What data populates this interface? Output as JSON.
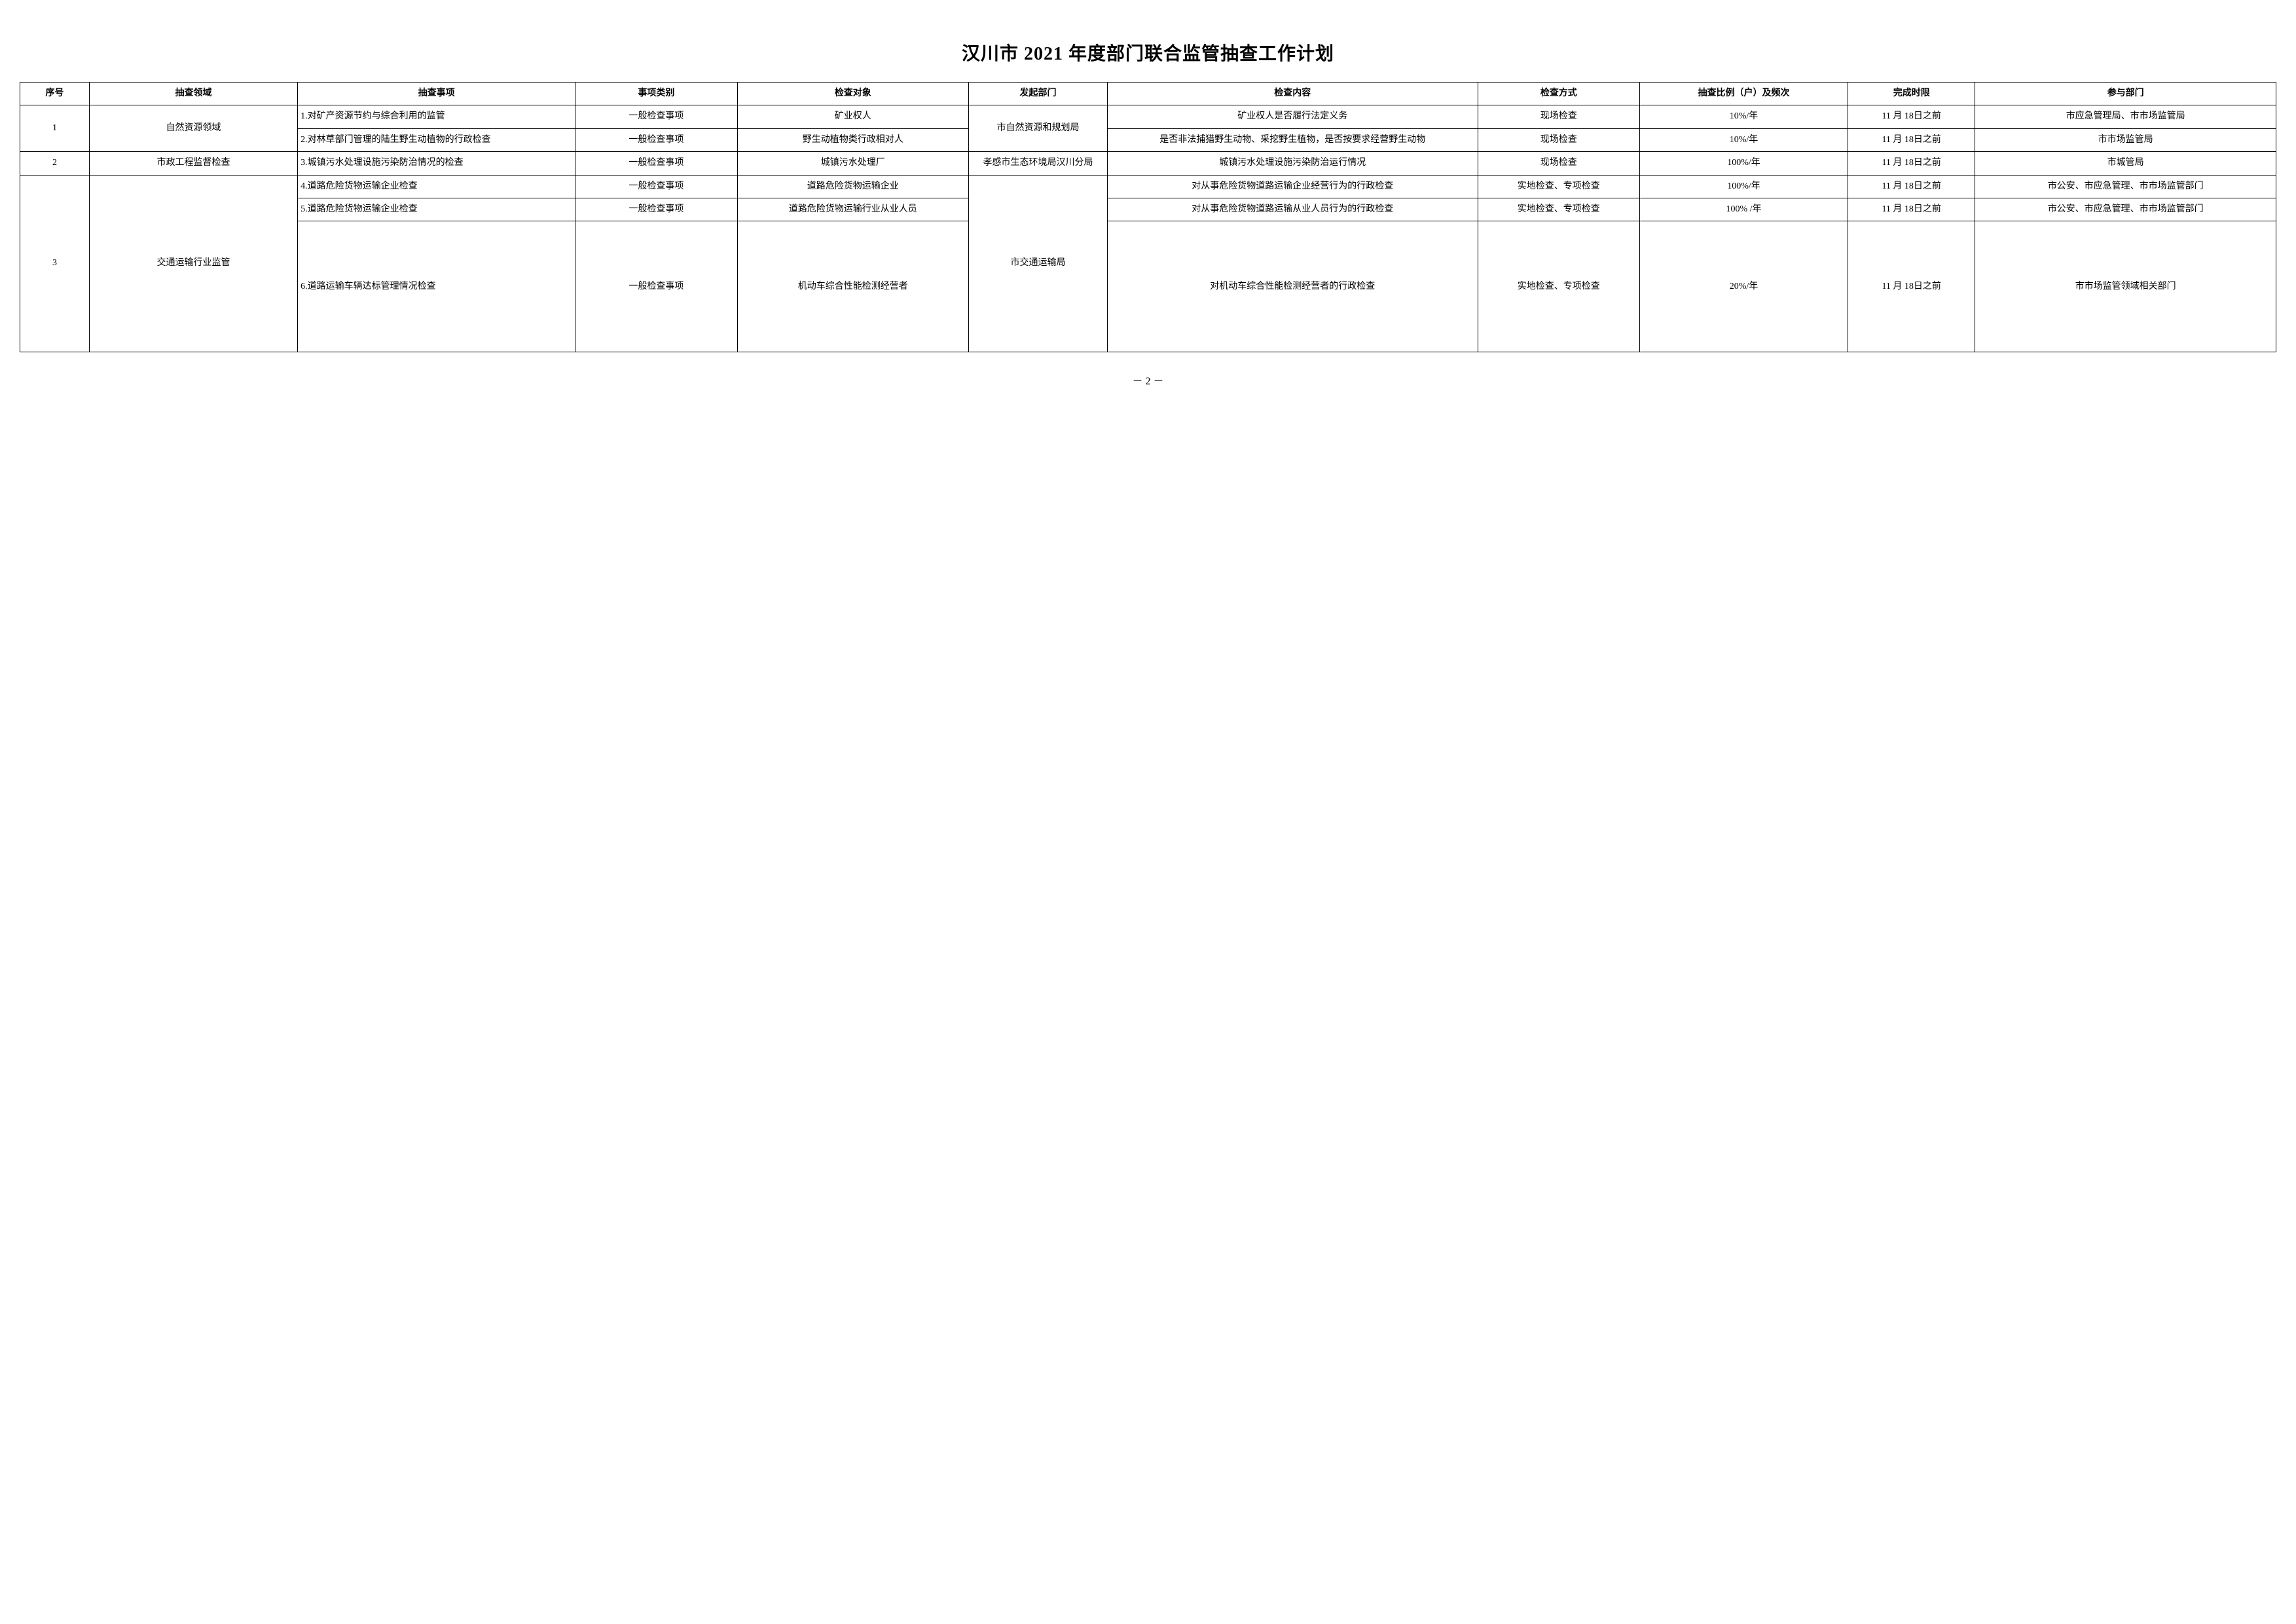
{
  "title": "汉川市 2021 年度部门联合监管抽查工作计划",
  "headers": {
    "seq": "序号",
    "field": "抽查领域",
    "item": "抽查事项",
    "category": "事项类别",
    "object": "检查对象",
    "initiator": "发起部门",
    "content": "检查内容",
    "method": "检查方式",
    "ratio": "抽查比例（户）及频次",
    "deadline": "完成时限",
    "dept": "参与部门"
  },
  "groups": [
    {
      "seq": "1",
      "field": "自然资源领域",
      "initiator": "市自然资源和规划局",
      "rows": [
        {
          "item": "1.对矿产资源节约与综合利用的监管",
          "category": "一般检查事项",
          "object": "矿业权人",
          "content": "矿业权人是否履行法定义务",
          "method": "现场检查",
          "ratio": "10%/年",
          "deadline": "11 月 18日之前",
          "dept": "市应急管理局、市市场监管局"
        },
        {
          "item": "2.对林草部门管理的陆生野生动植物的行政检查",
          "category": "一般检查事项",
          "object": "野生动植物类行政相对人",
          "content": "是否非法捕猎野生动物、采挖野生植物，是否按要求经营野生动物",
          "method": "现场检查",
          "ratio": "10%/年",
          "deadline": "11 月 18日之前",
          "dept": "市市场监管局"
        }
      ]
    },
    {
      "seq": "2",
      "field": "市政工程监督检查",
      "initiator": "孝感市生态环境局汉川分局",
      "rows": [
        {
          "item": "3.城镇污水处理设施污染防治情况的检查",
          "category": "一般检查事项",
          "object": "城镇污水处理厂",
          "content": "城镇污水处理设施污染防治运行情况",
          "method": "现场检查",
          "ratio": "100%/年",
          "deadline": "11 月 18日之前",
          "dept": "市城管局"
        }
      ]
    },
    {
      "seq": "3",
      "field": "交通运输行业监管",
      "initiator": "市交通运输局",
      "rows": [
        {
          "item": "4.道路危险货物运输企业检查",
          "category": "一般检查事项",
          "object": "道路危险货物运输企业",
          "content": "对从事危险货物道路运输企业经营行为的行政检查",
          "method": "实地检查、专项检查",
          "ratio": "100%/年",
          "deadline": "11 月 18日之前",
          "dept": "市公安、市应急管理、市市场监管部门"
        },
        {
          "item": "5.道路危险货物运输企业检查",
          "category": "一般检查事项",
          "object": "道路危险货物运输行业从业人员",
          "content": "对从事危险货物道路运输从业人员行为的行政检查",
          "method": "实地检查、专项检查",
          "ratio": "100% /年",
          "deadline": "11 月 18日之前",
          "dept": "市公安、市应急管理、市市场监管部门"
        },
        {
          "item": "6.道路运输车辆达标管理情况检查",
          "category": "一般检查事项",
          "object": "机动车综合性能检测经营者",
          "content": "对机动车综合性能检测经营者的行政检查",
          "method": "实地检查、专项检查",
          "ratio": "20%/年",
          "deadline": "11 月 18日之前",
          "dept": "市市场监管领域相关部门"
        }
      ]
    }
  ],
  "page_number": "－ 2 －"
}
